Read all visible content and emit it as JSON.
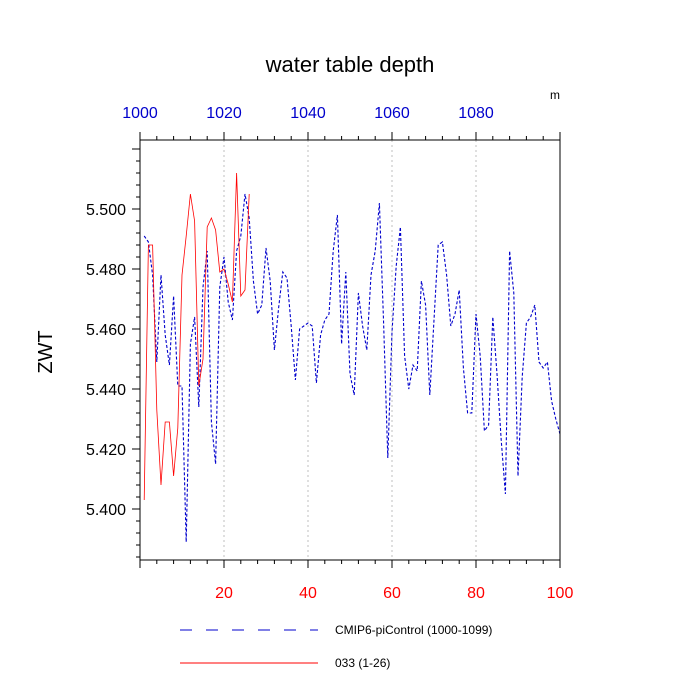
{
  "chart_data": {
    "type": "line",
    "title": "water table depth",
    "ylabel": "ZWT",
    "units_label": "m",
    "xlim": [
      0,
      100
    ],
    "x_ticks": [
      20,
      40,
      60,
      80,
      100
    ],
    "x_tick_labels": [
      "20",
      "40",
      "60",
      "80",
      "100"
    ],
    "x_tick_color": "#ff0000",
    "top_axis": {
      "range": [
        1000,
        1100
      ],
      "ticks": [
        1000,
        1020,
        1040,
        1060,
        1080
      ],
      "tick_labels": [
        "1000",
        "1020",
        "1040",
        "1060",
        "1080"
      ],
      "color": "#0000cc"
    },
    "ylim": [
      5.383,
      5.523
    ],
    "y_ticks": [
      5.4,
      5.42,
      5.44,
      5.46,
      5.48,
      5.5
    ],
    "y_tick_labels": [
      "5.400",
      "5.420",
      "5.440",
      "5.460",
      "5.480",
      "5.500"
    ],
    "grid": "vertical dashed at top-axis ticks",
    "legend_position": "bottom",
    "series": [
      {
        "name": "CMIP6-piControl (1000-1099)",
        "color": "#0000cc",
        "dash": "dashed",
        "x": [
          1,
          2,
          3,
          4,
          5,
          6,
          7,
          8,
          9,
          10,
          11,
          12,
          13,
          14,
          15,
          16,
          17,
          18,
          19,
          20,
          21,
          22,
          23,
          24,
          25,
          26,
          27,
          28,
          29,
          30,
          31,
          32,
          33,
          34,
          35,
          36,
          37,
          38,
          39,
          40,
          41,
          42,
          43,
          44,
          45,
          46,
          47,
          48,
          49,
          50,
          51,
          52,
          53,
          54,
          55,
          56,
          57,
          58,
          59,
          60,
          61,
          62,
          63,
          64,
          65,
          66,
          67,
          68,
          69,
          70,
          71,
          72,
          73,
          74,
          75,
          76,
          77,
          78,
          79,
          80,
          81,
          82,
          83,
          84,
          85,
          86,
          87,
          88,
          89,
          90,
          91,
          92,
          93,
          94,
          95,
          96,
          97,
          98,
          99,
          100
        ],
        "values": [
          5.491,
          5.489,
          5.478,
          5.449,
          5.478,
          5.458,
          5.448,
          5.471,
          5.441,
          5.441,
          5.389,
          5.455,
          5.464,
          5.434,
          5.474,
          5.486,
          5.429,
          5.415,
          5.474,
          5.484,
          5.469,
          5.463,
          5.486,
          5.491,
          5.505,
          5.497,
          5.476,
          5.465,
          5.468,
          5.487,
          5.476,
          5.453,
          5.467,
          5.479,
          5.477,
          5.461,
          5.443,
          5.46,
          5.461,
          5.462,
          5.461,
          5.442,
          5.458,
          5.463,
          5.465,
          5.486,
          5.498,
          5.455,
          5.479,
          5.445,
          5.438,
          5.472,
          5.461,
          5.453,
          5.478,
          5.486,
          5.502,
          5.462,
          5.417,
          5.459,
          5.481,
          5.494,
          5.451,
          5.44,
          5.448,
          5.446,
          5.476,
          5.468,
          5.438,
          5.463,
          5.488,
          5.489,
          5.478,
          5.461,
          5.465,
          5.473,
          5.447,
          5.432,
          5.432,
          5.465,
          5.451,
          5.426,
          5.428,
          5.464,
          5.445,
          5.423,
          5.405,
          5.486,
          5.472,
          5.411,
          5.444,
          5.462,
          5.464,
          5.468,
          5.449,
          5.447,
          5.449,
          5.436,
          5.43,
          5.425
        ]
      },
      {
        "name": "033 (1-26)",
        "color": "#ff0000",
        "dash": "solid",
        "x": [
          1,
          2,
          3,
          4,
          5,
          6,
          7,
          8,
          9,
          10,
          11,
          12,
          13,
          14,
          15,
          16,
          17,
          18,
          19,
          20,
          21,
          22,
          23,
          24,
          25,
          26
        ],
        "values": [
          5.403,
          5.488,
          5.488,
          5.433,
          5.408,
          5.429,
          5.429,
          5.411,
          5.427,
          5.478,
          5.491,
          5.505,
          5.496,
          5.441,
          5.45,
          5.494,
          5.497,
          5.493,
          5.479,
          5.48,
          5.475,
          5.469,
          5.512,
          5.471,
          5.473,
          5.505
        ]
      }
    ]
  }
}
